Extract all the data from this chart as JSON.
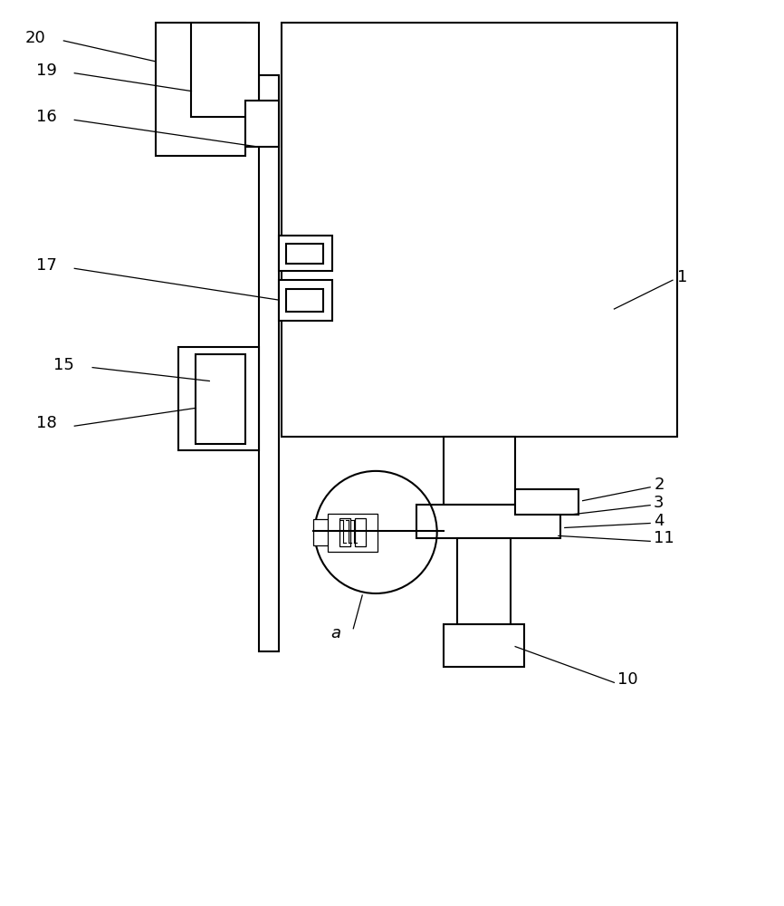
{
  "bg_color": "#ffffff",
  "line_color": "#000000",
  "line_width": 1.5,
  "thin_lw": 0.9,
  "fig_width": 8.66,
  "fig_height": 10.0,
  "label_fontsize": 13
}
